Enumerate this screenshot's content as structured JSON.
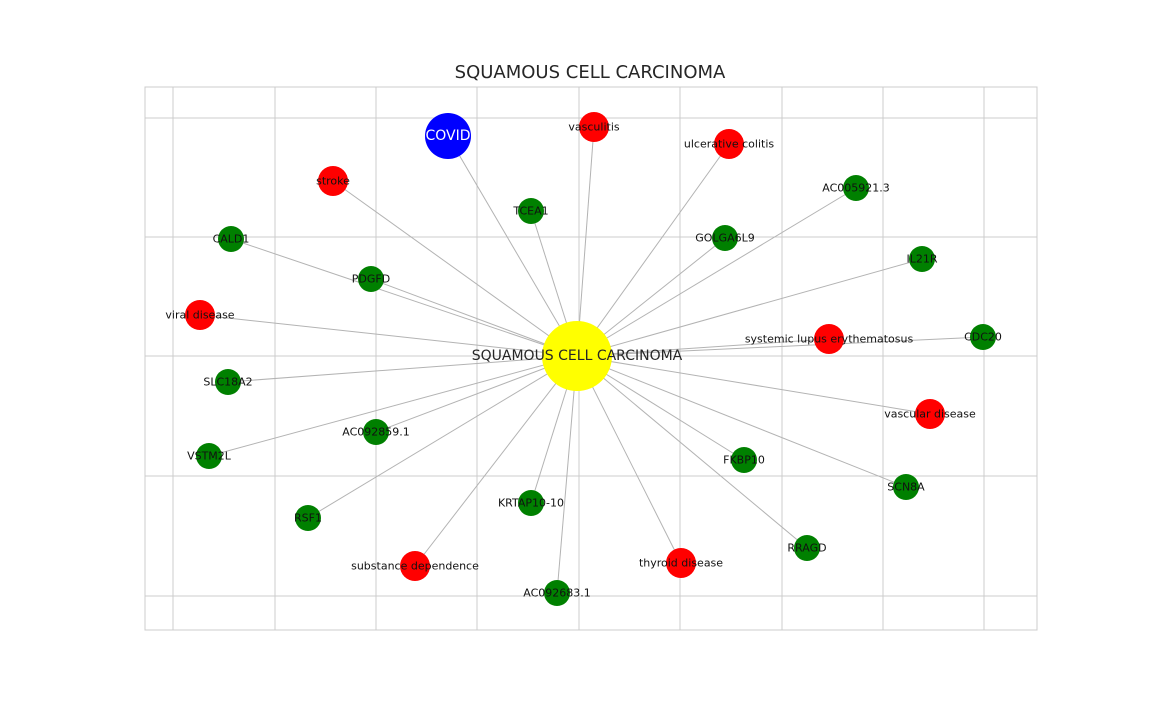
{
  "title": "SQUAMOUS CELL CARCINOMA",
  "colors": {
    "center": "#ffff00",
    "covid": "#0000ff",
    "disease": "#ff0000",
    "gene": "#008000",
    "edge": "#b3b3b3",
    "grid": "#cccccc"
  },
  "center": {
    "id": "center",
    "label": "SQUAMOUS CELL CARCINOMA",
    "type": "center"
  },
  "nodes": [
    {
      "id": "covid",
      "label": "COVID",
      "type": "covid"
    },
    {
      "id": "vasculitis",
      "label": "vasculitis",
      "type": "disease"
    },
    {
      "id": "ulcerative-colitis",
      "label": "ulcerative colitis",
      "type": "disease"
    },
    {
      "id": "stroke",
      "label": "stroke",
      "type": "disease"
    },
    {
      "id": "ac005921",
      "label": "AC005921.3",
      "type": "gene"
    },
    {
      "id": "tcea1",
      "label": "TCEA1",
      "type": "gene"
    },
    {
      "id": "cald1",
      "label": "CALD1",
      "type": "gene"
    },
    {
      "id": "golga6l9",
      "label": "GOLGA6L9",
      "type": "gene"
    },
    {
      "id": "il21r",
      "label": "IL21R",
      "type": "gene"
    },
    {
      "id": "pdgfd",
      "label": "PDGFD",
      "type": "gene"
    },
    {
      "id": "viral-disease",
      "label": "viral disease",
      "type": "disease"
    },
    {
      "id": "sle",
      "label": "systemic lupus erythematosus",
      "type": "disease"
    },
    {
      "id": "cdc20",
      "label": "CDC20",
      "type": "gene"
    },
    {
      "id": "slc18a2",
      "label": "SLC18A2",
      "type": "gene"
    },
    {
      "id": "vascular-disease",
      "label": "vascular disease",
      "type": "disease"
    },
    {
      "id": "ac092859",
      "label": "AC092859.1",
      "type": "gene"
    },
    {
      "id": "vstm2l",
      "label": "VSTM2L",
      "type": "gene"
    },
    {
      "id": "fkbp10",
      "label": "FKBP10",
      "type": "gene"
    },
    {
      "id": "scn8a",
      "label": "SCN8A",
      "type": "gene"
    },
    {
      "id": "rsf1",
      "label": "RSF1",
      "type": "gene"
    },
    {
      "id": "krtap10",
      "label": "KRTAP10-10",
      "type": "gene"
    },
    {
      "id": "rragd",
      "label": "RRAGD",
      "type": "gene"
    },
    {
      "id": "substance-dependence",
      "label": "substance dependence",
      "type": "disease"
    },
    {
      "id": "thyroid-disease",
      "label": "thyroid disease",
      "type": "disease"
    },
    {
      "id": "ac092683",
      "label": "AC092683.1",
      "type": "gene"
    }
  ]
}
